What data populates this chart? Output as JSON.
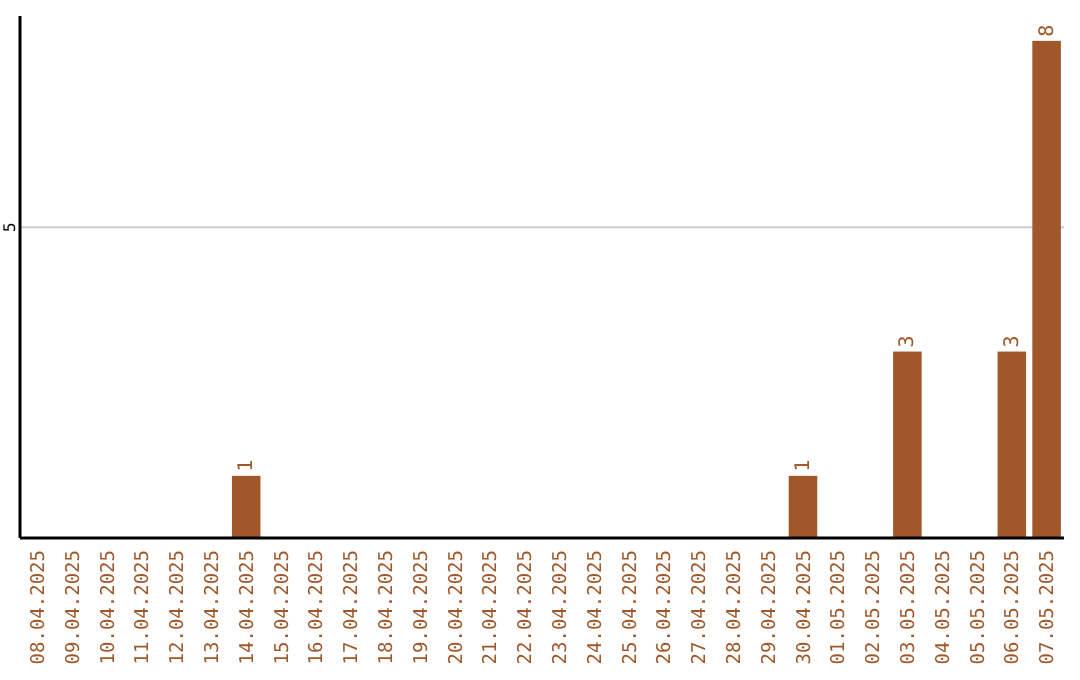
{
  "chart_data": {
    "type": "bar",
    "categories": [
      "08.04.2025",
      "09.04.2025",
      "10.04.2025",
      "11.04.2025",
      "12.04.2025",
      "13.04.2025",
      "14.04.2025",
      "15.04.2025",
      "16.04.2025",
      "17.04.2025",
      "18.04.2025",
      "19.04.2025",
      "20.04.2025",
      "21.04.2025",
      "22.04.2025",
      "23.04.2025",
      "24.04.2025",
      "25.04.2025",
      "26.04.2025",
      "27.04.2025",
      "28.04.2025",
      "29.04.2025",
      "30.04.2025",
      "01.05.2025",
      "02.05.2025",
      "03.05.2025",
      "04.05.2025",
      "05.05.2025",
      "06.05.2025",
      "07.05.2025"
    ],
    "values": [
      0,
      0,
      0,
      0,
      0,
      0,
      1,
      0,
      0,
      0,
      0,
      0,
      0,
      0,
      0,
      0,
      0,
      0,
      0,
      0,
      0,
      0,
      1,
      0,
      0,
      3,
      0,
      0,
      3,
      8
    ],
    "value_labels": [
      null,
      null,
      null,
      null,
      null,
      null,
      "1",
      null,
      null,
      null,
      null,
      null,
      null,
      null,
      null,
      null,
      null,
      null,
      null,
      null,
      null,
      null,
      "1",
      null,
      null,
      "3",
      null,
      null,
      "3",
      "8"
    ],
    "color": "#a0582b",
    "ylim": [
      0,
      8.4
    ],
    "yticks": [
      5
    ],
    "grid": "y"
  }
}
